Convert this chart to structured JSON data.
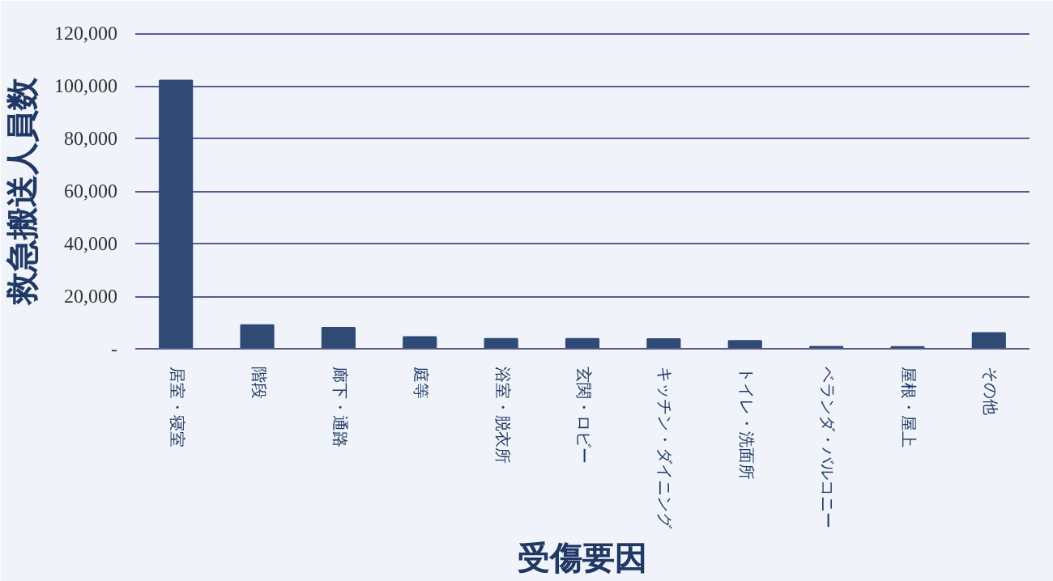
{
  "chart_data": {
    "type": "bar",
    "ylabel": "救急搬送人員数",
    "xlabel": "受傷要因",
    "categories": [
      "居室・寝室",
      "階段",
      "廊下・通路",
      "庭等",
      "浴室・脱衣所",
      "玄関・ロビー",
      "キッチン・ダイニング",
      "トイレ・洗面所",
      "ベランダ・バルコニー",
      "屋根・屋上",
      "その他"
    ],
    "values": [
      102000,
      9000,
      8000,
      4500,
      3800,
      3800,
      3700,
      3000,
      800,
      700,
      6000
    ],
    "color": "#2e4a75",
    "ylim": [
      0,
      120000
    ],
    "yticks": [
      {
        "value": 0,
        "label": "-"
      },
      {
        "value": 20000,
        "label": "20,000"
      },
      {
        "value": 40000,
        "label": "40,000"
      },
      {
        "value": 60000,
        "label": "60,000"
      },
      {
        "value": 80000,
        "label": "80,000"
      },
      {
        "value": 100000,
        "label": "100,000"
      },
      {
        "value": 120000,
        "label": "120,000"
      }
    ],
    "grid": "y"
  }
}
